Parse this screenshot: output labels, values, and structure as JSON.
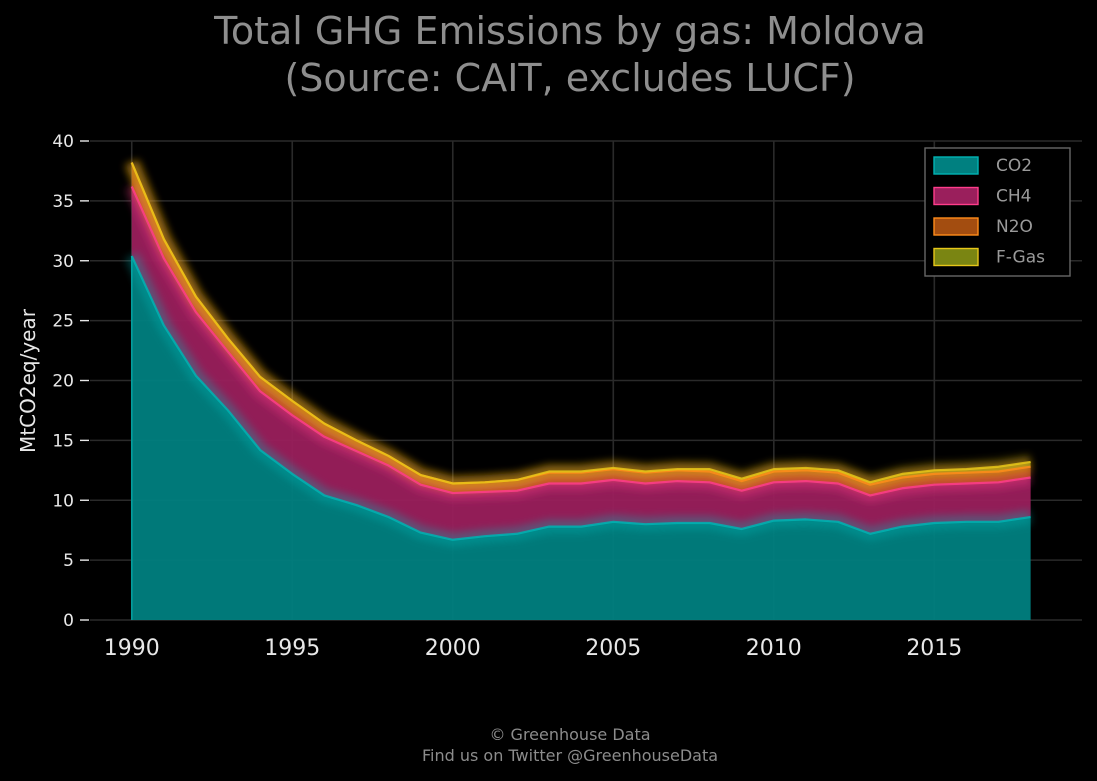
{
  "chart_data": {
    "type": "area",
    "stacked": true,
    "title_line1": "Total GHG Emissions by gas: Moldova",
    "title_line2": "(Source: CAIT, excludes LUCF)",
    "xlabel": "",
    "ylabel": "MtCO2eq/year",
    "xlim": [
      1988.7,
      2019.6
    ],
    "ylim": [
      0,
      40
    ],
    "xticks": [
      1990,
      1995,
      2000,
      2005,
      2010,
      2015
    ],
    "yticks": [
      0,
      5,
      10,
      15,
      20,
      25,
      30,
      35,
      40
    ],
    "grid": true,
    "legend_position": "top-right",
    "x": [
      1990,
      1991,
      1992,
      1993,
      1994,
      1995,
      1996,
      1997,
      1998,
      1999,
      2000,
      2001,
      2002,
      2003,
      2004,
      2005,
      2006,
      2007,
      2008,
      2009,
      2010,
      2011,
      2012,
      2013,
      2014,
      2015,
      2016,
      2017,
      2018
    ],
    "series": [
      {
        "name": "CO2",
        "color": "#00b3b3",
        "fill": "#008080",
        "values": [
          30.4,
          24.6,
          20.4,
          17.5,
          14.2,
          12.2,
          10.4,
          9.6,
          8.6,
          7.3,
          6.7,
          7.0,
          7.2,
          7.8,
          7.8,
          8.2,
          8.0,
          8.1,
          8.1,
          7.6,
          8.3,
          8.4,
          8.2,
          7.2,
          7.8,
          8.1,
          8.2,
          8.2,
          8.6
        ]
      },
      {
        "name": "CH4",
        "color": "#ff3d8b",
        "fill": "#9a1f5c",
        "values": [
          5.8,
          5.6,
          5.3,
          4.9,
          4.9,
          4.9,
          4.9,
          4.5,
          4.3,
          4.0,
          3.9,
          3.7,
          3.6,
          3.6,
          3.6,
          3.5,
          3.4,
          3.5,
          3.4,
          3.2,
          3.2,
          3.2,
          3.2,
          3.2,
          3.2,
          3.2,
          3.2,
          3.3,
          3.3
        ]
      },
      {
        "name": "N2O",
        "color": "#ff8c1a",
        "fill": "#a34d10",
        "values": [
          2.0,
          1.6,
          1.3,
          1.1,
          1.2,
          1.2,
          1.1,
          0.9,
          0.8,
          0.8,
          0.8,
          0.8,
          0.9,
          0.9,
          0.9,
          0.9,
          0.9,
          0.9,
          0.9,
          0.8,
          0.9,
          0.9,
          0.9,
          0.9,
          0.9,
          0.9,
          0.9,
          0.9,
          0.9
        ]
      },
      {
        "name": "F-Gas",
        "color": "#e6c619",
        "fill": "#7a8512",
        "values": [
          0.0,
          0.0,
          0.0,
          0.0,
          0.0,
          0.0,
          0.0,
          0.0,
          0.0,
          0.0,
          0.0,
          0.0,
          0.0,
          0.1,
          0.1,
          0.1,
          0.1,
          0.1,
          0.2,
          0.2,
          0.2,
          0.2,
          0.2,
          0.2,
          0.3,
          0.3,
          0.3,
          0.4,
          0.4
        ]
      }
    ]
  },
  "credit": {
    "line1": "© Greenhouse Data",
    "line2": "Find us on Twitter @GreenhouseData"
  },
  "colors": {
    "background": "#000000",
    "grid": "#2a2a2a",
    "axis": "#555555"
  }
}
